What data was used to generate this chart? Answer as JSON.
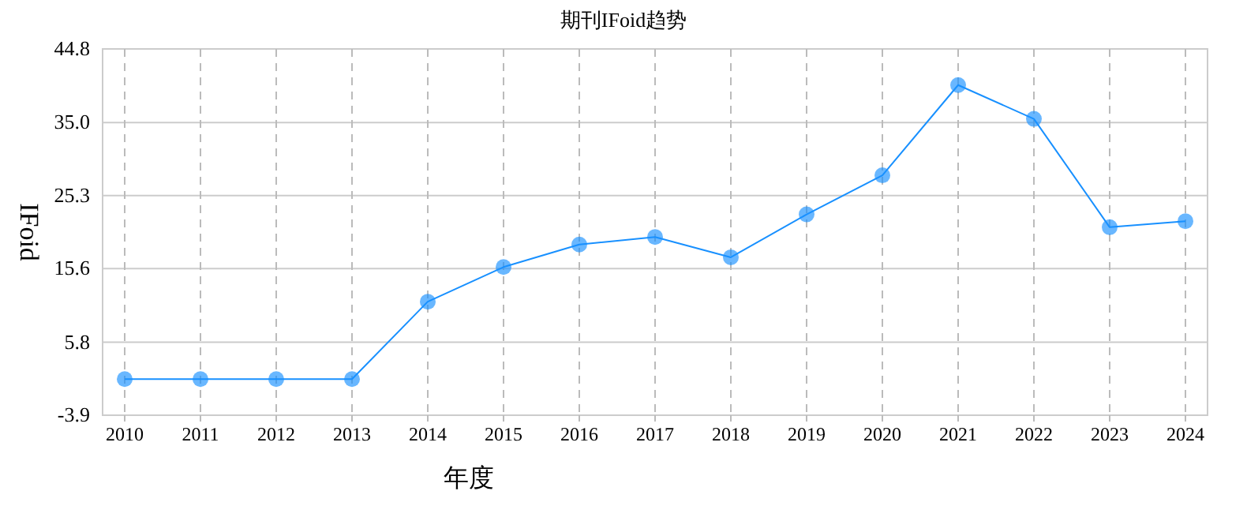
{
  "chart_data": {
    "type": "line",
    "title": "期刊IFoid趋势",
    "xlabel": "年度",
    "ylabel": "IFoid",
    "categories": [
      "2010",
      "2011",
      "2012",
      "2013",
      "2014",
      "2015",
      "2016",
      "2017",
      "2018",
      "2019",
      "2020",
      "2021",
      "2022",
      "2023",
      "2024"
    ],
    "series": [
      {
        "color": "#1890ff",
        "values": [
          0.9,
          0.9,
          0.9,
          0.9,
          11.2,
          15.8,
          18.8,
          19.8,
          17.1,
          22.8,
          28.0,
          40.0,
          35.5,
          21.1,
          21.9
        ]
      }
    ],
    "ylim": [
      -3.9,
      44.8
    ],
    "yticks": [
      -3.9,
      5.8,
      15.6,
      25.3,
      {
        "value": 35,
        "label": "35.0"
      },
      44.8
    ],
    "grid": true,
    "marker": "circle",
    "line_style": "solid"
  }
}
